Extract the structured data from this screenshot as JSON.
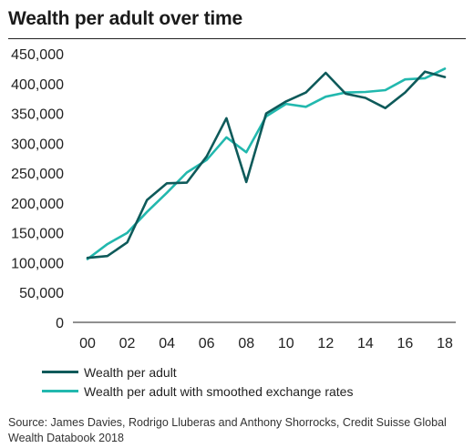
{
  "title": "Wealth per adult over time",
  "source": "Source: James Davies, Rodrigo Lluberas and Anthony Shorrocks, Credit Suisse Global Wealth Databook 2018",
  "colors": {
    "series1": "#0e5a5a",
    "series2": "#22b8ae",
    "axis": "#222222",
    "text": "#222222"
  },
  "chart_data": {
    "type": "line",
    "title": "Wealth per adult over time",
    "xlabel": "",
    "ylabel": "",
    "x": [
      0,
      1,
      2,
      3,
      4,
      5,
      6,
      7,
      8,
      9,
      10,
      11,
      12,
      13,
      14,
      15,
      16,
      17,
      18
    ],
    "xticks": [
      0,
      2,
      4,
      6,
      8,
      10,
      12,
      14,
      16,
      18
    ],
    "xticklabels": [
      "00",
      "02",
      "04",
      "06",
      "08",
      "10",
      "12",
      "14",
      "16",
      "18"
    ],
    "xlim": [
      0,
      18
    ],
    "yticks": [
      0,
      50000,
      100000,
      150000,
      200000,
      250000,
      300000,
      350000,
      400000,
      450000
    ],
    "yticklabels": [
      "0",
      "50,000",
      "100,000",
      "150,000",
      "200,000",
      "250,000",
      "300,000",
      "350,000",
      "400,000",
      "450,000"
    ],
    "ylim": [
      0,
      450000
    ],
    "grid": false,
    "legend_position": "bottom",
    "series": [
      {
        "name": "Wealth per adult",
        "values": [
          108000,
          111000,
          134000,
          205000,
          233000,
          234000,
          278000,
          342000,
          235000,
          350000,
          370000,
          385000,
          418000,
          383000,
          376000,
          359000,
          385000,
          420000,
          411000
        ]
      },
      {
        "name": "Wealth per adult with smoothed exchange rates",
        "values": [
          106000,
          131000,
          150000,
          185000,
          217000,
          251000,
          272000,
          310000,
          285000,
          345000,
          366000,
          361000,
          378000,
          385000,
          386000,
          389000,
          407000,
          409000,
          425000
        ]
      }
    ]
  }
}
